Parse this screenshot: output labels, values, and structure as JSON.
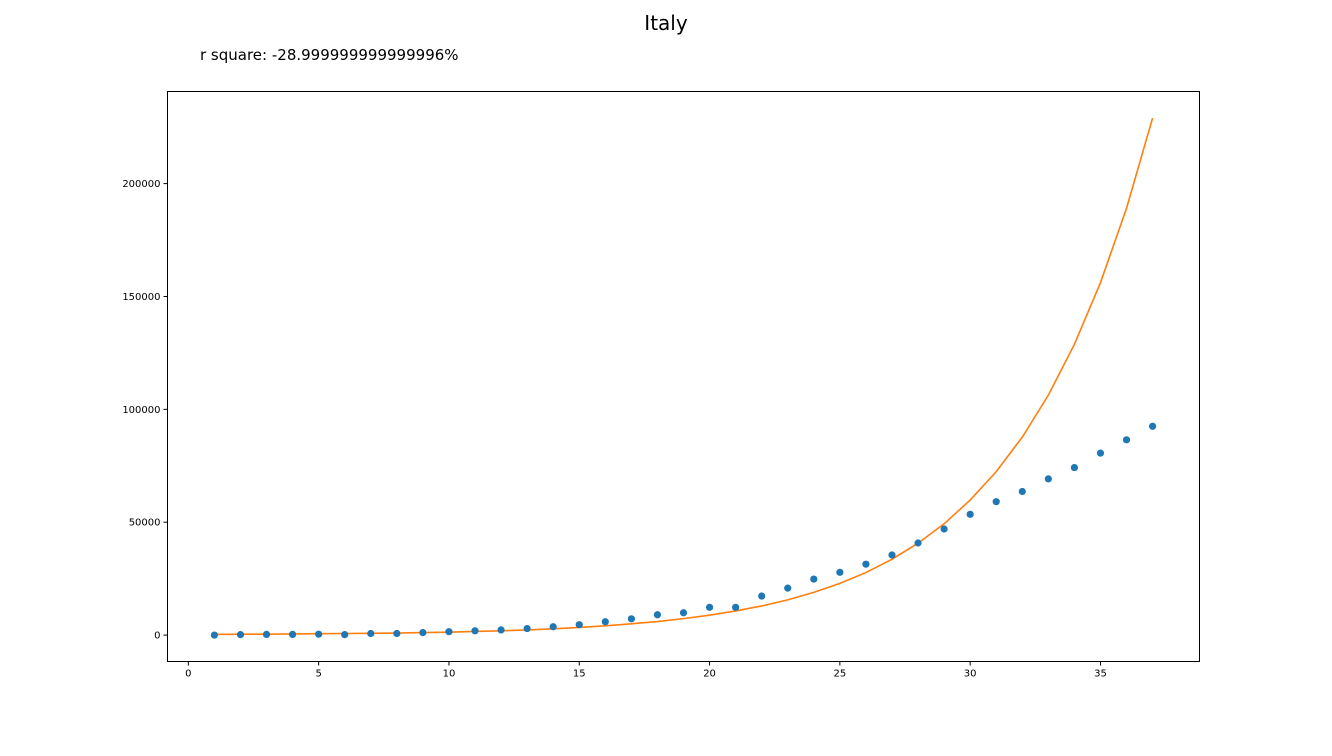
{
  "chart_data": {
    "type": "scatter",
    "title": "Italy",
    "annotation": "r square: -28.999999999999996%",
    "xlabel": "",
    "ylabel": "",
    "xlim": [
      -0.8,
      38.8
    ],
    "ylim": [
      -11700,
      240800
    ],
    "xticks": [
      0,
      5,
      10,
      15,
      20,
      25,
      30,
      35
    ],
    "yticks": [
      0,
      50000,
      100000,
      150000,
      200000
    ],
    "grid": false,
    "colors": {
      "points": "#1f77b4",
      "fit": "#ff7f0e"
    },
    "series": [
      {
        "kind": "scatter",
        "x": [
          1,
          2,
          3,
          4,
          5,
          6,
          7,
          8,
          9,
          10,
          11,
          12,
          13,
          14,
          15,
          16,
          17,
          18,
          19,
          20,
          21,
          22,
          23,
          24,
          25,
          26,
          27,
          28,
          29,
          30,
          31,
          32,
          33,
          34,
          35,
          36,
          37
        ],
        "y": [
          0,
          200,
          300,
          300,
          400,
          200,
          700,
          700,
          1100,
          1500,
          1900,
          2300,
          2900,
          3700,
          4600,
          5900,
          7200,
          9000,
          9900,
          12300,
          12300,
          17300,
          20800,
          24800,
          27800,
          31400,
          35500,
          40800,
          47000,
          53500,
          59100,
          63600,
          69200,
          74200,
          80600,
          86500,
          92500
        ]
      },
      {
        "kind": "line",
        "x": [
          1,
          2,
          3,
          4,
          5,
          6,
          7,
          8,
          9,
          10,
          11,
          12,
          13,
          14,
          15,
          16,
          17,
          18,
          19,
          20,
          21,
          22,
          23,
          24,
          25,
          26,
          27,
          28,
          29,
          30,
          31,
          32,
          33,
          34,
          35,
          36,
          37
        ],
        "y": [
          300,
          400,
          400,
          500,
          600,
          700,
          800,
          900,
          1100,
          1300,
          1600,
          1900,
          2300,
          2800,
          3400,
          4100,
          5000,
          6000,
          7300,
          8800,
          10700,
          12900,
          15600,
          18900,
          22900,
          27700,
          33600,
          40700,
          49300,
          59800,
          72400,
          87700,
          106300,
          128800,
          156100,
          189100,
          229000
        ]
      }
    ]
  }
}
